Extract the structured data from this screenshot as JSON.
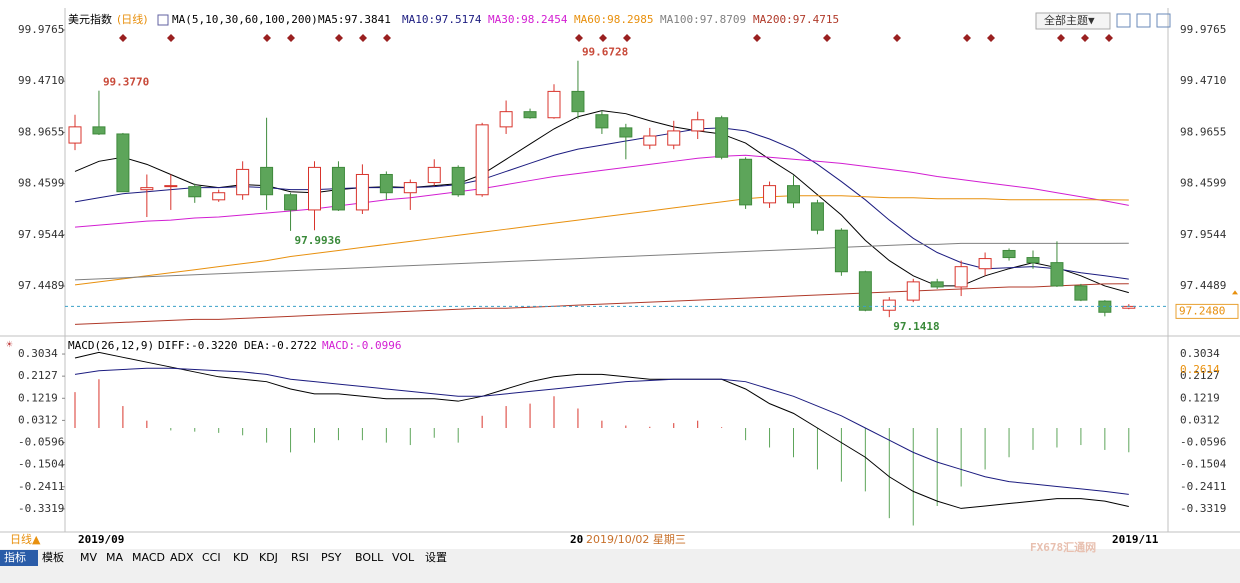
{
  "header": {
    "menu": "全部主题▼"
  },
  "chart_data": [
    {
      "type": "candlestick",
      "title": "美元指数",
      "subtitle": "(日线)",
      "legend_title": "MA(5,10,30,60,100,200)",
      "open": [
        98.86,
        99.02,
        98.95,
        98.4,
        98.43,
        98.43,
        98.3,
        98.35,
        98.62,
        98.35,
        98.2,
        98.62,
        98.2,
        98.55,
        98.37,
        98.47,
        98.62,
        98.35,
        99.02,
        99.17,
        99.11,
        99.37,
        99.14,
        99.01,
        98.84,
        98.84,
        98.98,
        99.11,
        98.7,
        98.27,
        98.44,
        98.27,
        98.0,
        97.59,
        97.21,
        97.31,
        97.49,
        97.44,
        97.62,
        97.8,
        97.73,
        97.68,
        97.45,
        97.3,
        97.23
      ],
      "high": [
        99.14,
        99.377,
        98.96,
        98.55,
        98.55,
        98.46,
        98.4,
        98.68,
        99.11,
        98.37,
        98.68,
        98.68,
        98.65,
        98.58,
        98.5,
        98.7,
        98.64,
        99.06,
        99.28,
        99.2,
        99.44,
        99.6728,
        99.18,
        99.05,
        99.01,
        99.08,
        99.17,
        99.13,
        98.72,
        98.48,
        98.54,
        98.3,
        98.02,
        97.6,
        97.34,
        97.52,
        97.52,
        97.7,
        97.78,
        97.82,
        97.8,
        97.89,
        97.47,
        97.31,
        97.27
      ],
      "low": [
        98.79,
        98.94,
        98.38,
        98.13,
        98.2,
        98.27,
        98.28,
        98.3,
        98.2,
        97.9936,
        98.0,
        98.19,
        98.16,
        98.3,
        98.2,
        98.44,
        98.33,
        98.33,
        98.95,
        99.1,
        99.1,
        99.1,
        98.95,
        98.7,
        98.8,
        98.8,
        98.9,
        98.7,
        98.21,
        98.22,
        98.22,
        97.96,
        97.55,
        97.2,
        97.1418,
        97.29,
        97.42,
        97.35,
        97.55,
        97.7,
        97.62,
        97.44,
        97.3,
        97.15,
        97.22
      ],
      "close": [
        99.02,
        98.95,
        98.38,
        98.42,
        98.44,
        98.33,
        98.37,
        98.6,
        98.35,
        98.2,
        98.62,
        98.2,
        98.55,
        98.37,
        98.47,
        98.62,
        98.35,
        99.04,
        99.17,
        99.11,
        99.37,
        99.17,
        99.01,
        98.92,
        98.93,
        98.98,
        99.09,
        98.72,
        98.25,
        98.44,
        98.27,
        98.0,
        97.59,
        97.21,
        97.31,
        97.49,
        97.44,
        97.64,
        97.72,
        97.73,
        97.68,
        97.45,
        97.31,
        97.19,
        97.248
      ],
      "up_color": "#d8342c",
      "down_color": "#5da55a",
      "ylim": [
        97.015,
        100.055
      ],
      "yticks": [
        99.9765,
        {
          "value": 99.471,
          "label": "99.4710"
        },
        98.9655,
        98.4599,
        97.9544,
        97.4489
      ],
      "last_price_label": "97.2480",
      "annotations": [
        "99.3770",
        "97.9936",
        "99.6728",
        "97.1418"
      ],
      "series": [
        {
          "name": "MA5:97.3841",
          "color": "#000000",
          "values": [
            98.58,
            98.68,
            98.72,
            98.65,
            98.55,
            98.45,
            98.42,
            98.45,
            98.44,
            98.38,
            98.37,
            98.4,
            98.42,
            98.43,
            98.42,
            98.44,
            98.46,
            98.55,
            98.7,
            98.85,
            99.0,
            99.12,
            99.18,
            99.15,
            99.08,
            99.02,
            98.98,
            98.95,
            98.86,
            98.7,
            98.55,
            98.35,
            98.15,
            97.9,
            97.7,
            97.55,
            97.45,
            97.45,
            97.55,
            97.62,
            97.68,
            97.63,
            97.55,
            97.45,
            97.3841
          ]
        },
        {
          "name": "MA10:97.5174",
          "color": "#1c1c80",
          "values": [
            98.28,
            98.32,
            98.36,
            98.38,
            98.4,
            98.42,
            98.42,
            98.43,
            98.42,
            98.4,
            98.4,
            98.41,
            98.42,
            98.42,
            98.42,
            98.43,
            98.45,
            98.5,
            98.58,
            98.66,
            98.74,
            98.8,
            98.84,
            98.88,
            98.92,
            98.96,
            99.0,
            99.01,
            98.98,
            98.9,
            98.8,
            98.65,
            98.48,
            98.3,
            98.1,
            97.92,
            97.78,
            97.68,
            97.62,
            97.63,
            97.64,
            97.62,
            97.58,
            97.55,
            97.5174
          ]
        },
        {
          "name": "MA30:98.2454",
          "color": "#d21ed2",
          "values": [
            98.03,
            98.05,
            98.07,
            98.09,
            98.1,
            98.12,
            98.13,
            98.15,
            98.17,
            98.19,
            98.21,
            98.24,
            98.27,
            98.3,
            98.32,
            98.35,
            98.38,
            98.41,
            98.45,
            98.49,
            98.53,
            98.56,
            98.59,
            98.62,
            98.65,
            98.68,
            98.71,
            98.73,
            98.74,
            98.72,
            98.7,
            98.68,
            98.66,
            98.63,
            98.6,
            98.57,
            98.53,
            98.5,
            98.47,
            98.44,
            98.41,
            98.37,
            98.33,
            98.29,
            98.2454
          ]
        },
        {
          "name": "MA60:98.2985",
          "color": "#e8900e",
          "values": [
            97.46,
            97.49,
            97.52,
            97.55,
            97.58,
            97.61,
            97.64,
            97.67,
            97.7,
            97.74,
            97.77,
            97.8,
            97.83,
            97.86,
            97.89,
            97.92,
            97.95,
            97.98,
            98.01,
            98.04,
            98.07,
            98.1,
            98.13,
            98.16,
            98.19,
            98.22,
            98.25,
            98.28,
            98.31,
            98.33,
            98.34,
            98.34,
            98.34,
            98.33,
            98.32,
            98.32,
            98.31,
            98.31,
            98.31,
            98.3,
            98.3,
            98.3,
            98.3,
            98.3,
            98.2985
          ]
        },
        {
          "name": "MA100:97.8709",
          "color": "#808080",
          "values": [
            97.51,
            97.52,
            97.53,
            97.54,
            97.55,
            97.56,
            97.57,
            97.58,
            97.59,
            97.6,
            97.61,
            97.62,
            97.63,
            97.64,
            97.65,
            97.66,
            97.67,
            97.68,
            97.69,
            97.7,
            97.71,
            97.72,
            97.73,
            97.74,
            97.75,
            97.76,
            97.77,
            97.78,
            97.79,
            97.8,
            97.81,
            97.82,
            97.83,
            97.84,
            97.85,
            97.86,
            97.86,
            97.87,
            97.87,
            97.87,
            97.87,
            97.87,
            97.87,
            97.87,
            97.8709
          ]
        },
        {
          "name": "MA200:97.4715",
          "color": "#b03a2a",
          "values": [
            97.07,
            97.08,
            97.09,
            97.1,
            97.11,
            97.12,
            97.12,
            97.13,
            97.14,
            97.15,
            97.16,
            97.17,
            97.18,
            97.19,
            97.2,
            97.21,
            97.22,
            97.23,
            97.23,
            97.24,
            97.25,
            97.26,
            97.27,
            97.28,
            97.29,
            97.3,
            97.31,
            97.32,
            97.33,
            97.34,
            97.35,
            97.36,
            97.37,
            97.38,
            97.39,
            97.4,
            97.41,
            97.42,
            97.43,
            97.44,
            97.44,
            97.45,
            97.46,
            97.47,
            97.4715
          ]
        }
      ]
    },
    {
      "type": "macd",
      "title": "MACD(26,12,9)",
      "right_label": "0.2614",
      "ylim": [
        -0.4185,
        0.361
      ],
      "yticks": [
        0.3034,
        0.2127,
        0.1219,
        0.0312,
        -0.0596,
        -0.1504,
        -0.2411,
        -0.3319
      ],
      "histogram": {
        "name": "MACD:-0.0996",
        "color": "#d21ed2",
        "up_color": "#d8342c",
        "down_color": "#5da55a",
        "values": [
          0.147,
          0.2,
          0.09,
          0.03,
          -0.01,
          -0.015,
          -0.02,
          -0.03,
          -0.06,
          -0.1,
          -0.06,
          -0.05,
          -0.05,
          -0.06,
          -0.07,
          -0.04,
          -0.06,
          0.05,
          0.09,
          0.1,
          0.13,
          0.08,
          0.03,
          0.01,
          0.005,
          0.02,
          0.03,
          0.003,
          -0.05,
          -0.08,
          -0.12,
          -0.17,
          -0.22,
          -0.26,
          -0.37,
          -0.4,
          -0.32,
          -0.24,
          -0.17,
          -0.12,
          -0.09,
          -0.08,
          -0.07,
          -0.09,
          -0.0996
        ]
      },
      "series": [
        {
          "name": "DIFF:-0.3220",
          "color": "#000000",
          "values": [
            0.287,
            0.31,
            0.29,
            0.27,
            0.25,
            0.23,
            0.21,
            0.2,
            0.19,
            0.16,
            0.14,
            0.14,
            0.13,
            0.12,
            0.12,
            0.12,
            0.11,
            0.13,
            0.16,
            0.19,
            0.21,
            0.22,
            0.22,
            0.21,
            0.2,
            0.2,
            0.2,
            0.2,
            0.16,
            0.1,
            0.06,
            0.0,
            -0.06,
            -0.12,
            -0.2,
            -0.26,
            -0.3,
            -0.33,
            -0.32,
            -0.31,
            -0.3,
            -0.29,
            -0.29,
            -0.3,
            -0.322
          ]
        },
        {
          "name": "DEA:-0.2722",
          "color": "#1c1c80",
          "values": [
            0.22,
            0.235,
            0.24,
            0.245,
            0.245,
            0.24,
            0.235,
            0.23,
            0.22,
            0.2,
            0.19,
            0.18,
            0.17,
            0.16,
            0.15,
            0.14,
            0.13,
            0.13,
            0.14,
            0.15,
            0.16,
            0.17,
            0.18,
            0.19,
            0.195,
            0.2,
            0.2,
            0.2,
            0.19,
            0.16,
            0.13,
            0.09,
            0.05,
            0.0,
            -0.05,
            -0.1,
            -0.14,
            -0.17,
            -0.2,
            -0.22,
            -0.23,
            -0.24,
            -0.25,
            -0.26,
            -0.2722
          ]
        }
      ]
    }
  ],
  "date_bar": {
    "period": "日线▲",
    "start": "2019/09",
    "cursor_prefix": "20",
    "cursor": "2019/10/02 星期三",
    "end": "2019/11",
    "watermark": "FX678汇通网"
  },
  "toolbar": [
    "指标",
    "模板",
    "MV",
    "MA",
    "MACD",
    "ADX",
    "CCI",
    "KD",
    "KDJ",
    "RSI",
    "PSY",
    "BOLL",
    "VOL",
    "设置"
  ]
}
